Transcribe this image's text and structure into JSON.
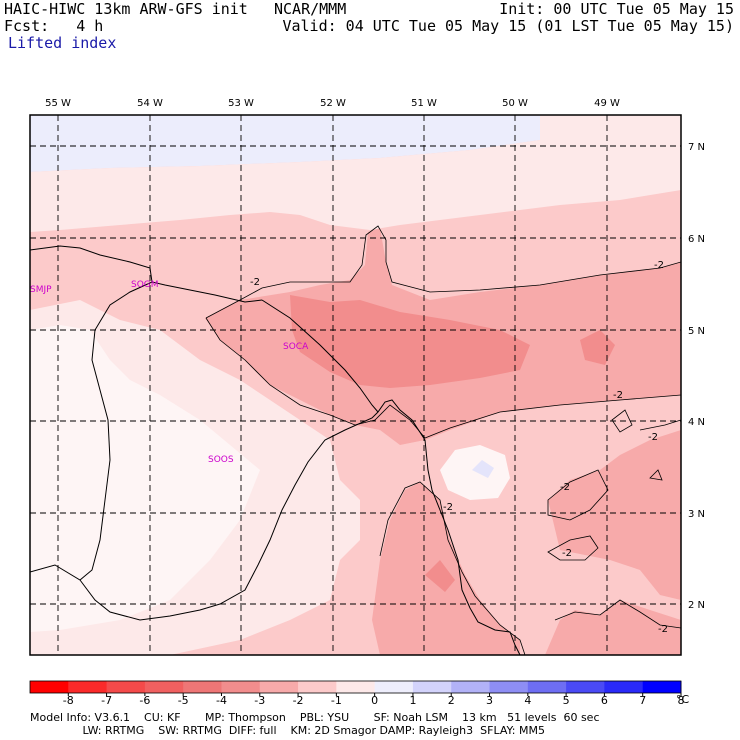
{
  "header": {
    "model_title": "HAIC-HIWC 13km ARW-GFS init",
    "org": "NCAR/MMM",
    "init": "Init: 00 UTC Tue 05 May 15",
    "fcst": "Fcst:   4 h",
    "valid": "Valid: 04 UTC Tue 05 May 15 (01 LST Tue 05 May 15)",
    "field": "Lifted index"
  },
  "map": {
    "lon_labels": [
      "55 W",
      "54 W",
      "53 W",
      "52 W",
      "51 W",
      "50 W",
      "49 W"
    ],
    "lat_labels": [
      "7 N",
      "6 N",
      "5 N",
      "4 N",
      "3 N",
      "2 N"
    ],
    "stations": [
      "SMJP",
      "SOGM",
      "SOCA",
      "SOOS"
    ],
    "contour_label": "-2",
    "colors": {
      "ocean_blue": "#ecedfc",
      "shade_light": "#fde9e9",
      "shade_1": "#fccaca",
      "shade_2": "#f7aaaa",
      "shade_3": "#f28d8d",
      "station": "#cc00cc"
    }
  },
  "legend": {
    "labels": [
      "-8",
      "-7",
      "-6",
      "-5",
      "-4",
      "-3",
      "-2",
      "-1",
      "0",
      "1",
      "2",
      "3",
      "4",
      "5",
      "6",
      "7",
      "8"
    ],
    "unit": "°C",
    "colors": [
      "#ff0000",
      "#fb2a2a",
      "#f44a4a",
      "#f06060",
      "#ee7676",
      "#f28d8d",
      "#f7aaaa",
      "#fccaca",
      "#fde9e9",
      "#eeeefc",
      "#d3d3fb",
      "#b2b2f7",
      "#8e8ef4",
      "#6e6ef3",
      "#4a4af5",
      "#2a2af8",
      "#0000ff"
    ]
  },
  "footer": {
    "line1": "Model Info: V3.6.1    CU: KF       MP: Thompson    PBL: YSU       SF: Noah LSM    13 km   51 levels  60 sec",
    "line2": "               LW: RRTMG    SW: RRTMG  DIFF: full    KM: 2D Smagor DAMP: Rayleigh3  SFLAY: MM5"
  }
}
